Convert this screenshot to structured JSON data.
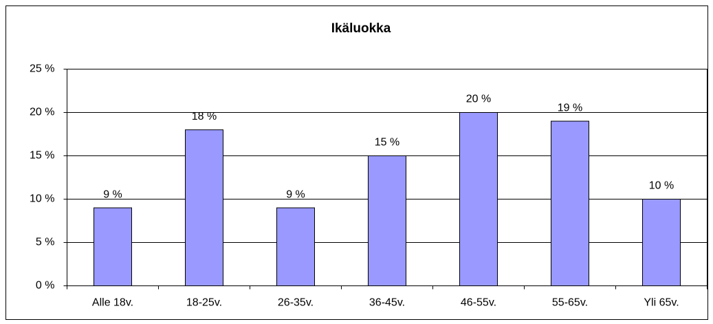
{
  "chart_data": {
    "type": "bar",
    "title": "Ikäluokka",
    "categories": [
      "Alle 18v.",
      "18-25v.",
      "26-35v.",
      "36-45v.",
      "46-55v.",
      "55-65v.",
      "Yli 65v."
    ],
    "values": [
      9,
      18,
      9,
      15,
      20,
      19,
      10
    ],
    "value_labels": [
      "9 %",
      "18 %",
      "9 %",
      "15 %",
      "20 %",
      "19 %",
      "10 %"
    ],
    "color": "#9999ff",
    "ylim": [
      0,
      25
    ],
    "yticks": [
      {
        "value": 0,
        "label": "0 %"
      },
      {
        "value": 5,
        "label": "5 %"
      },
      {
        "value": 10,
        "label": "10 %"
      },
      {
        "value": 15,
        "label": "15 %"
      },
      {
        "value": 20,
        "label": "20 %"
      },
      {
        "value": 25,
        "label": "25 %"
      }
    ],
    "grid": true
  }
}
